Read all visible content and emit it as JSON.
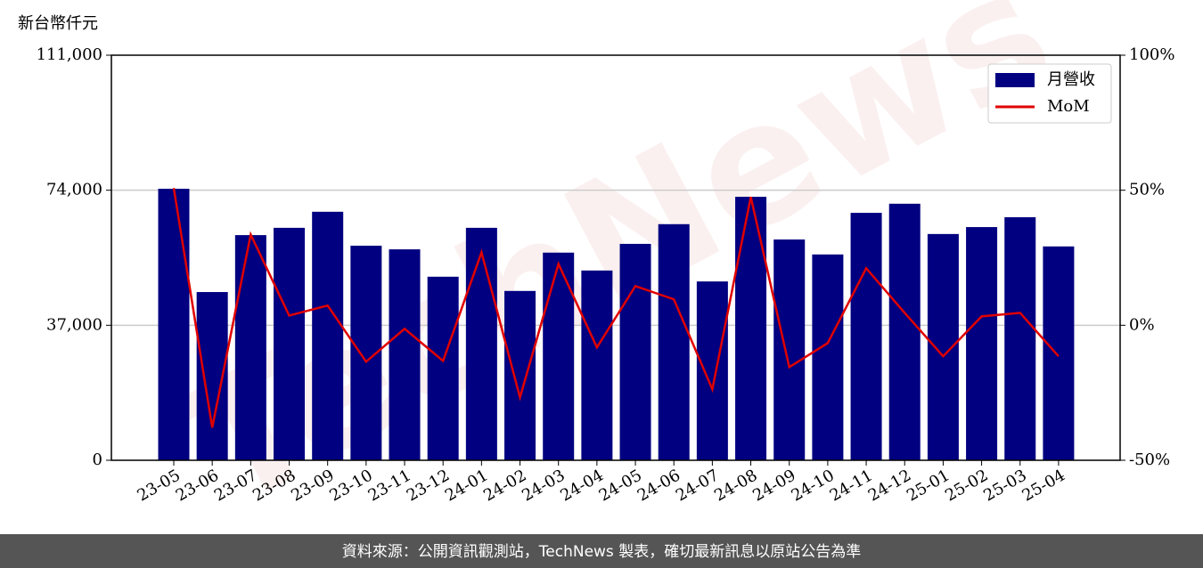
{
  "chart_data": {
    "type": "bar_line",
    "y_label": "新台幣仟元",
    "categories": [
      "23-05",
      "23-06",
      "23-07",
      "23-08",
      "23-09",
      "23-10",
      "23-11",
      "23-12",
      "24-01",
      "24-02",
      "24-03",
      "24-04",
      "24-05",
      "24-06",
      "24-07",
      "24-08",
      "24-09",
      "24-10",
      "24-11",
      "24-12",
      "25-01",
      "25-02",
      "25-03",
      "25-04"
    ],
    "series": [
      {
        "name": "月營收",
        "type": "bar",
        "color": "#000080",
        "values": [
          74400,
          46100,
          61700,
          63700,
          68100,
          58800,
          57800,
          50300,
          63700,
          46400,
          56900,
          52000,
          59300,
          64700,
          49000,
          72200,
          60500,
          56400,
          67800,
          70300,
          62000,
          63900,
          66600,
          58600
        ]
      },
      {
        "name": "MoM",
        "type": "line",
        "axis": "y2",
        "color": "#e00000",
        "values": [
          50.8,
          -37.9,
          33.6,
          3.6,
          7.3,
          -13.5,
          -1.3,
          -13.2,
          27.0,
          -26.7,
          22.7,
          -8.2,
          14.5,
          9.6,
          -23.7,
          47.5,
          -15.5,
          -6.6,
          21.1,
          4.6,
          -11.5,
          3.3,
          4.6,
          -11.5
        ]
      }
    ],
    "ylim": [
      0,
      111000
    ],
    "yticks": [
      0,
      {
        "value": 37000,
        "label": "37,000"
      },
      {
        "value": 74000,
        "label": "74,000"
      },
      {
        "value": 111000,
        "label": "111,000"
      }
    ],
    "y2lim": [
      -50,
      100
    ],
    "y2ticks": [
      {
        "value": -50,
        "label": "-50%"
      },
      {
        "value": 0,
        "label": "0%"
      },
      {
        "value": 50,
        "label": "50%"
      },
      {
        "value": 100,
        "label": "100%"
      }
    ],
    "grid": true,
    "legend": "upper right",
    "watermark": "TechNews",
    "footer": "資料來源：公開資訊觀測站，TechNews 製表，確切最新訊息以原站公告為準"
  }
}
